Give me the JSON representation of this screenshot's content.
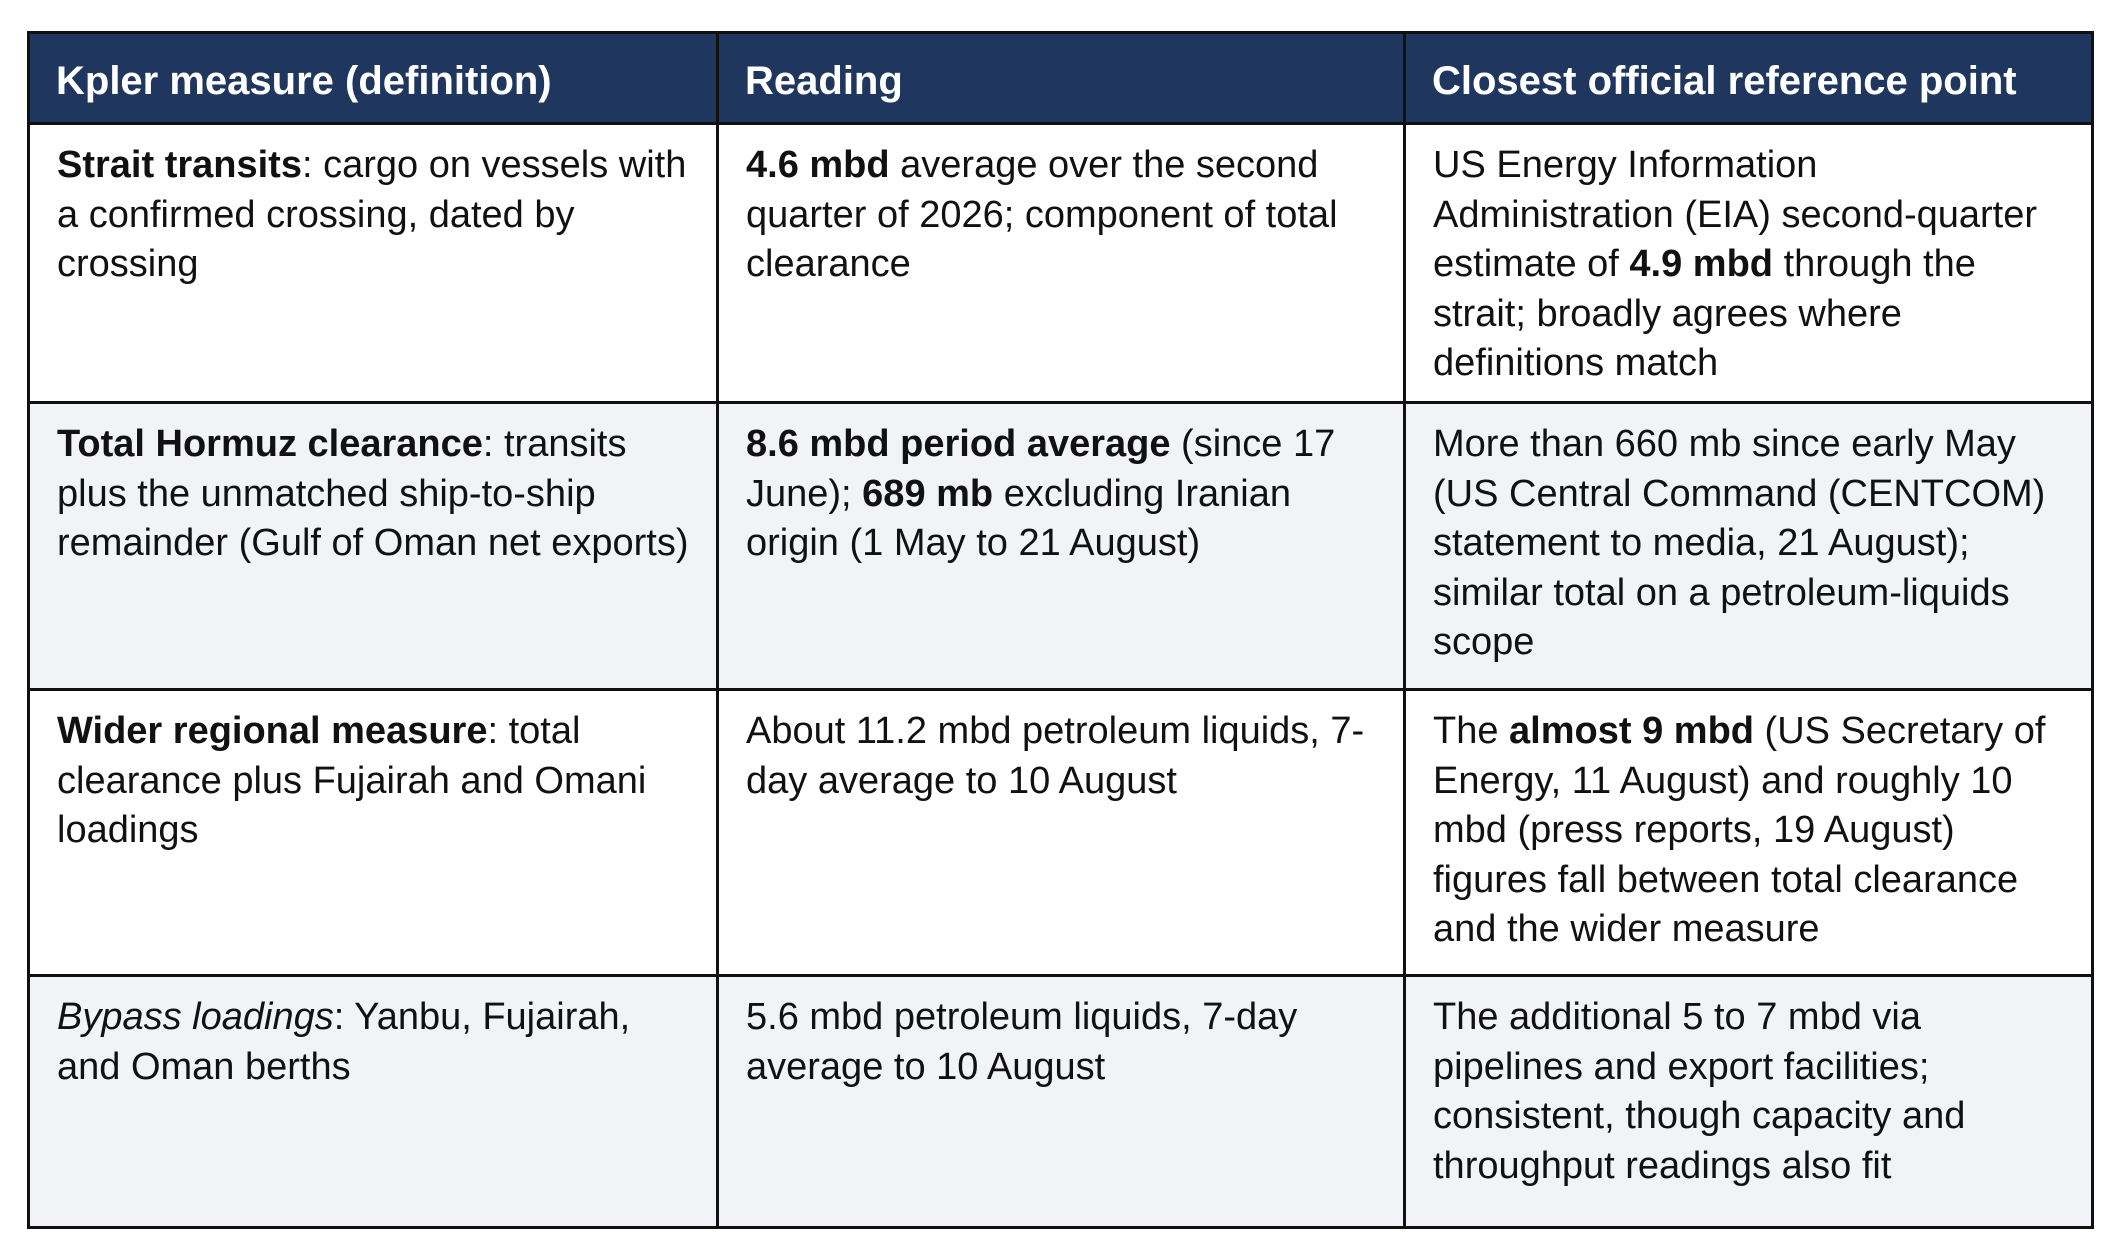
{
  "headers": {
    "col1": "Kpler measure (definition)",
    "col2": "Reading",
    "col3": "Closest official reference point"
  },
  "rows": [
    {
      "measure": {
        "term": "Strait transits",
        "rest": ": cargo on vessels with a confirmed crossing, dated by crossing"
      },
      "reading": {
        "b1": "4.6 mbd",
        "t1": " average over the second quarter of 2026; component of total clearance"
      },
      "reference": {
        "t1": "US Energy Information Administration (EIA) second-quarter estimate of ",
        "b1": "4.9 mbd",
        "t2": " through the strait; broadly agrees where definitions match"
      }
    },
    {
      "measure": {
        "term": "Total Hormuz clearance",
        "rest": ": transits plus the unmatched ship-to-ship remainder (Gulf of Oman net exports)"
      },
      "reading": {
        "b1": "8.6 mbd period average",
        "t1": " (since 17 June); ",
        "b2": "689 mb",
        "t2": " excluding Iranian origin (1 May to 21 August)"
      },
      "reference": {
        "t1": "More than 660 mb since early May (US Central Command (CENTCOM) statement to media, 21 August); similar total on a petroleum-liquids scope"
      }
    },
    {
      "measure": {
        "term": "Wider regional measure",
        "rest": ": total clearance plus Fujairah and Omani loadings"
      },
      "reading": {
        "t1": "About 11.2 mbd petroleum liquids, 7-day average to 10 August"
      },
      "reference": {
        "t1": "The ",
        "b1": "almost 9 mbd",
        "t2": " (US Secretary of Energy, 11 August) and roughly 10 mbd (press reports, 19 August) figures fall between total clearance and the wider measure"
      }
    },
    {
      "measure": {
        "term": "Bypass loadings",
        "rest": ": Yanbu, Fujairah, and Oman berths"
      },
      "reading": {
        "t1": "5.6 mbd petroleum liquids, 7-day average to 10 August"
      },
      "reference": {
        "t1": "The additional 5 to 7 mbd via pipelines and export facilities; consistent, though capacity and throughput readings also fit"
      }
    }
  ],
  "colors": {
    "header_bg": "#1f365f",
    "header_text": "#ffffff",
    "border": "#111111",
    "alt_row_bg": "#f1f3f7"
  }
}
